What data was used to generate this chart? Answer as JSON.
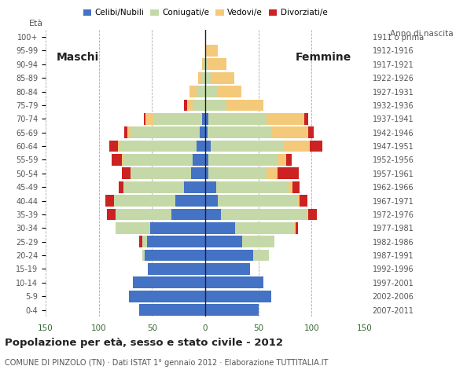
{
  "age_groups": [
    "0-4",
    "5-9",
    "10-14",
    "15-19",
    "20-24",
    "25-29",
    "30-34",
    "35-39",
    "40-44",
    "45-49",
    "50-54",
    "55-59",
    "60-64",
    "65-69",
    "70-74",
    "75-79",
    "80-84",
    "85-89",
    "90-94",
    "95-99",
    "100+"
  ],
  "birth_years": [
    "2007-2011",
    "2002-2006",
    "1997-2001",
    "1992-1996",
    "1987-1991",
    "1982-1986",
    "1977-1981",
    "1972-1976",
    "1967-1971",
    "1962-1966",
    "1957-1961",
    "1952-1956",
    "1947-1951",
    "1942-1946",
    "1937-1941",
    "1932-1936",
    "1927-1931",
    "1922-1926",
    "1917-1921",
    "1912-1916",
    "1911 o prima"
  ],
  "males": {
    "celibe": [
      62,
      72,
      68,
      54,
      57,
      55,
      52,
      32,
      28,
      20,
      13,
      12,
      8,
      5,
      3,
      0,
      0,
      0,
      0,
      0,
      0
    ],
    "coniugato": [
      0,
      0,
      0,
      0,
      2,
      4,
      32,
      52,
      58,
      57,
      57,
      65,
      72,
      65,
      45,
      12,
      8,
      4,
      2,
      0,
      0
    ],
    "vedovo": [
      0,
      0,
      0,
      0,
      0,
      0,
      0,
      0,
      0,
      0,
      0,
      1,
      2,
      3,
      8,
      5,
      7,
      3,
      1,
      0,
      0
    ],
    "divorziato": [
      0,
      0,
      0,
      0,
      0,
      3,
      0,
      8,
      8,
      4,
      8,
      10,
      8,
      3,
      2,
      3,
      0,
      0,
      0,
      0,
      0
    ]
  },
  "females": {
    "celibe": [
      50,
      62,
      55,
      42,
      45,
      35,
      28,
      15,
      12,
      10,
      3,
      3,
      5,
      2,
      3,
      0,
      0,
      0,
      0,
      0,
      0
    ],
    "coniugato": [
      0,
      0,
      0,
      0,
      15,
      30,
      55,
      80,
      75,
      68,
      55,
      65,
      68,
      60,
      55,
      20,
      12,
      5,
      2,
      0,
      0
    ],
    "vedovo": [
      0,
      0,
      0,
      0,
      0,
      0,
      2,
      2,
      2,
      4,
      10,
      8,
      25,
      35,
      35,
      35,
      22,
      22,
      18,
      12,
      0
    ],
    "divorziato": [
      0,
      0,
      0,
      0,
      0,
      0,
      2,
      8,
      7,
      7,
      20,
      5,
      12,
      5,
      4,
      0,
      0,
      0,
      0,
      0,
      0
    ]
  },
  "colors": {
    "celibe": "#4472c4",
    "coniugato": "#c5d9a8",
    "vedovo": "#f5c97a",
    "divorziato": "#cc2222"
  },
  "legend_labels": [
    "Celibi/Nubili",
    "Coniugati/e",
    "Vedovi/e",
    "Divorziati/e"
  ],
  "title": "Popolazione per età, sesso e stato civile - 2012",
  "subtitle": "COMUNE DI PINZOLO (TN) · Dati ISTAT 1° gennaio 2012 · Elaborazione TUTTITALIA.IT",
  "label_maschi": "Maschi",
  "label_femmine": "Femmine",
  "label_eta": "Età",
  "label_anno": "Anno di nascita",
  "xlim": 150,
  "xticks": [
    -150,
    -100,
    -50,
    0,
    50,
    100,
    150
  ],
  "xticklabels": [
    "150",
    "100",
    "50",
    "0",
    "50",
    "100",
    "150"
  ],
  "background_color": "#ffffff",
  "grid_color": "#aaaaaa",
  "axis_color": "#336633",
  "text_color": "#555555"
}
